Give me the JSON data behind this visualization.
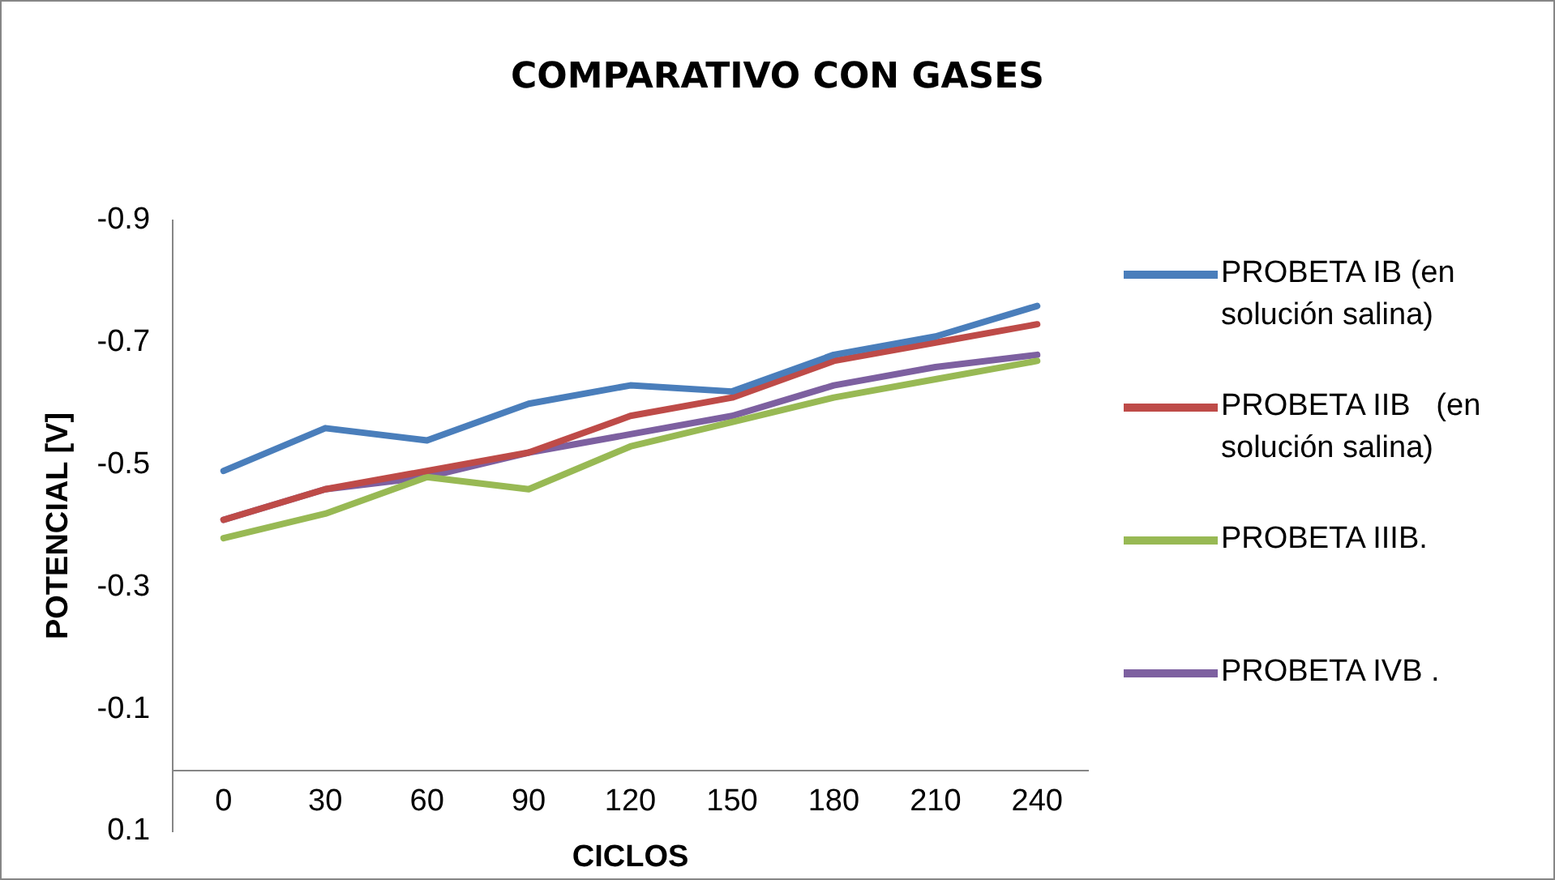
{
  "chart_data": {
    "type": "line",
    "title": "COMPARATIVO CON GASES",
    "xlabel": "CICLOS",
    "ylabel": "POTENCIAL [V]",
    "categories": [
      "0",
      "30",
      "60",
      "90",
      "120",
      "150",
      "180",
      "210",
      "240"
    ],
    "series": [
      {
        "name": "PROBETA IB (en solución salina)",
        "color": "#4a7ebb",
        "values": [
          -0.49,
          -0.56,
          -0.54,
          -0.6,
          -0.63,
          -0.62,
          -0.68,
          -0.71,
          -0.76
        ]
      },
      {
        "name": "PROBETA IIB   (en solución salina)",
        "color": "#be4b48",
        "values": [
          -0.41,
          -0.46,
          -0.49,
          -0.52,
          -0.58,
          -0.61,
          -0.67,
          -0.7,
          -0.73
        ]
      },
      {
        "name": "PROBETA IIIB.",
        "color": "#98b954",
        "values": [
          -0.38,
          -0.42,
          -0.48,
          -0.46,
          -0.53,
          -0.57,
          -0.61,
          -0.64,
          -0.67
        ]
      },
      {
        "name": "PROBETA IVB .",
        "color": "#7d60a0",
        "values": [
          -0.41,
          -0.46,
          -0.48,
          -0.52,
          -0.55,
          -0.58,
          -0.63,
          -0.66,
          -0.68
        ]
      }
    ],
    "ylim": [
      0.1,
      -0.9
    ],
    "yticks": [
      -0.9,
      -0.7,
      -0.5,
      -0.3,
      -0.1,
      0.1
    ],
    "grid": false,
    "legend": "right",
    "marker": "none",
    "line_style": "solid"
  }
}
